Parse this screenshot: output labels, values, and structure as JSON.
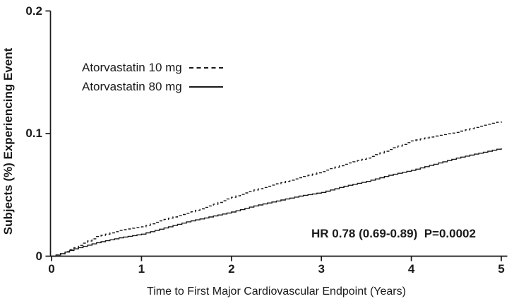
{
  "chart_data": {
    "type": "line",
    "subtype": "kaplan-meier-cumulative-incidence",
    "title": "",
    "xlabel": "Time to First Major Cardiovascular Endpoint (Years)",
    "ylabel": "Subjects (%) Experiencing Event",
    "xlim": [
      0,
      5
    ],
    "ylim": [
      0,
      0.2
    ],
    "x_ticks": [
      0,
      1,
      2,
      3,
      4,
      5
    ],
    "x_tick_labels": [
      "0",
      "1",
      "2",
      "3",
      "4",
      "5"
    ],
    "y_ticks": [
      0,
      0.1,
      0.2
    ],
    "y_tick_labels": [
      "0",
      "0.1",
      "0.2"
    ],
    "grid": false,
    "legend_position": "upper-left-inside",
    "x": [
      0,
      0.1,
      0.25,
      0.5,
      0.75,
      1,
      1.25,
      1.5,
      1.75,
      2,
      2.25,
      2.5,
      2.75,
      3,
      3.25,
      3.5,
      3.75,
      4,
      4.25,
      4.5,
      4.75,
      5
    ],
    "series": [
      {
        "name": "Atorvastatin 10 mg",
        "line_style": "dashed",
        "values": [
          0,
          0.002,
          0.007,
          0.016,
          0.021,
          0.024,
          0.03,
          0.035,
          0.041,
          0.048,
          0.054,
          0.059,
          0.064,
          0.069,
          0.075,
          0.08,
          0.087,
          0.094,
          0.098,
          0.101,
          0.106,
          0.11
        ]
      },
      {
        "name": "Atorvastatin 80 mg",
        "line_style": "solid",
        "values": [
          0,
          0.002,
          0.006,
          0.011,
          0.015,
          0.018,
          0.023,
          0.028,
          0.032,
          0.036,
          0.041,
          0.045,
          0.049,
          0.052,
          0.057,
          0.061,
          0.066,
          0.07,
          0.075,
          0.08,
          0.084,
          0.088
        ]
      }
    ],
    "annotation": "HR 0.78 (0.69-0.89)  P=0.0002",
    "colors": {
      "line": "#1a1a1a",
      "text": "#1a1a1a",
      "background": "#ffffff"
    }
  }
}
